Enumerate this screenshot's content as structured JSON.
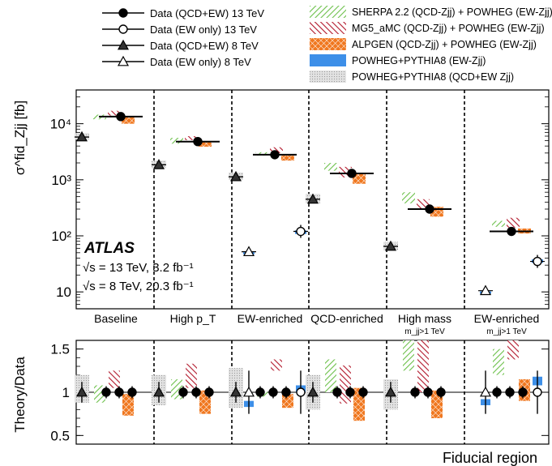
{
  "chart_data": {
    "type": "scatter",
    "title": "",
    "experiment_label": "ATLAS",
    "energy_labels": [
      "√s = 13 TeV, 3.2 fb⁻¹",
      "√s = 8 TeV, 20.3 fb⁻¹"
    ],
    "xlabel": "Fiducial region",
    "upper_ylabel": "σ^fid_Zjj [fb]",
    "lower_ylabel": "Theory/Data",
    "upper_yscale": "log",
    "upper_ylim": [
      5,
      40000
    ],
    "upper_yticks": [
      10,
      100,
      1000,
      10000
    ],
    "upper_ytick_labels": [
      "10",
      "10²",
      "10³",
      "10⁴"
    ],
    "lower_ylim": [
      0.4,
      1.6
    ],
    "lower_yticks": [
      0.5,
      1,
      1.5
    ],
    "lower_ytick_labels": [
      "0.5",
      "1",
      "1.5"
    ],
    "categories": [
      "Baseline",
      "High p_T",
      "EW-enriched",
      "QCD-enriched",
      "High mass",
      "EW-enriched"
    ],
    "category_sublabels": [
      "",
      "",
      "",
      "",
      "m_jj>1 TeV",
      "m_jj>1 TeV"
    ],
    "legend": {
      "placement": "top",
      "markers": [
        {
          "label": "Data (QCD+EW) 13 TeV",
          "marker": "filled-circle"
        },
        {
          "label": "Data (EW only) 13 TeV",
          "marker": "open-circle"
        },
        {
          "label": "Data (QCD+EW) 8 TeV",
          "marker": "filled-triangle"
        },
        {
          "label": "Data (EW only) 8 TeV",
          "marker": "open-triangle"
        }
      ],
      "bands": [
        {
          "label": "SHERPA 2.2 (QCD-Zjj) + POWHEG (EW-Zjj)",
          "style": "green-hatch",
          "color": "#6cc04a"
        },
        {
          "label": "MG5_aMC (QCD-Zjj) + POWHEG (EW-Zjj)",
          "style": "red-hatch",
          "color": "#b2182b"
        },
        {
          "label": "ALPGEN (QCD-Zjj) + POWHEG (EW-Zjj)",
          "style": "orange-crosshatch",
          "color": "#f07820"
        },
        {
          "label": "POWHEG+PYTHIA8 (EW-Zjj)",
          "style": "blue-solid",
          "color": "#3d8fe8"
        },
        {
          "label": "POWHEG+PYTHIA8 (QCD+EW Zjj)",
          "style": "grey-dots",
          "color": "#aaaaaa"
        }
      ]
    },
    "series": [
      {
        "name": "Data (QCD+EW) 13 TeV",
        "marker": "filled-circle",
        "values": [
          13400,
          4800,
          2800,
          1300,
          300,
          120
        ]
      },
      {
        "name": "Data (EW only) 13 TeV",
        "marker": "open-circle",
        "values": [
          null,
          null,
          120,
          null,
          null,
          35
        ]
      },
      {
        "name": "Data (QCD+EW) 8 TeV",
        "marker": "filled-triangle",
        "values": [
          5800,
          1850,
          1130,
          450,
          65,
          null
        ]
      },
      {
        "name": "Data (EW only) 8 TeV",
        "marker": "open-triangle",
        "values": [
          null,
          null,
          52,
          null,
          null,
          10.5
        ]
      },
      {
        "name": "SHERPA 2.2 (QCD-Zjj) + POWHEG (EW-Zjj)",
        "values": [
          [
            12000,
            14500
          ],
          [
            4400,
            5600
          ],
          [
            2700,
            3100
          ],
          [
            1450,
            2000
          ],
          [
            380,
            600
          ],
          [
            145,
            185
          ]
        ],
        "ratio": [
          [
            0.88,
            1.08
          ],
          [
            0.92,
            1.15
          ],
          [
            0.95,
            1.02
          ],
          [
            1.0,
            1.38
          ],
          [
            1.25,
            1.6
          ],
          [
            1.2,
            1.5
          ]
        ]
      },
      {
        "name": "MG5_aMC (QCD-Zjj) + POWHEG (EW-Zjj)",
        "values": [
          [
            14000,
            17000
          ],
          [
            5100,
            6000
          ],
          [
            3000,
            3800
          ],
          [
            1100,
            1700
          ],
          [
            310,
            450
          ],
          [
            140,
            210
          ]
        ],
        "ratio": [
          [
            1.05,
            1.25
          ],
          [
            1.05,
            1.33
          ],
          [
            1.25,
            1.38
          ],
          [
            0.87,
            1.31
          ],
          [
            1.0,
            1.6
          ],
          [
            1.38,
            1.6
          ]
        ]
      },
      {
        "name": "ALPGEN (QCD-Zjj) + POWHEG (EW-Zjj)",
        "values": [
          [
            10000,
            13000
          ],
          [
            3900,
            4900
          ],
          [
            2200,
            2700
          ],
          [
            850,
            1300
          ],
          [
            220,
            330
          ],
          [
            110,
            135
          ]
        ],
        "ratio": [
          [
            0.73,
            0.98
          ],
          [
            0.75,
            1.02
          ],
          [
            0.82,
            0.98
          ],
          [
            0.67,
            1.05
          ],
          [
            0.7,
            1.02
          ],
          [
            0.9,
            1.15
          ]
        ]
      },
      {
        "name": "POWHEG+PYTHIA8 (EW-Zjj)",
        "values": [
          null,
          null,
          [
            [
              47,
              51
            ],
            [
              108,
              125
            ]
          ],
          null,
          null,
          [
            [
              9.3,
              10.2
            ],
            [
              33,
              38
            ]
          ]
        ],
        "ratio": [
          null,
          null,
          [
            [
              0.83,
              0.9
            ],
            [
              1.0,
              1.08
            ]
          ],
          null,
          null,
          [
            [
              0.85,
              0.92
            ],
            [
              1.08,
              1.18
            ]
          ]
        ]
      },
      {
        "name": "POWHEG+PYTHIA8 (QCD+EW Zjj)",
        "values": [
          [
            5200,
            6800
          ],
          [
            1600,
            2200
          ],
          [
            1000,
            1350
          ],
          [
            380,
            560
          ],
          [
            55,
            78
          ],
          null
        ],
        "ratio": [
          [
            0.88,
            1.2
          ],
          [
            0.85,
            1.2
          ],
          [
            0.82,
            1.28
          ],
          [
            0.8,
            1.2
          ],
          [
            0.8,
            1.15
          ],
          null
        ]
      }
    ]
  }
}
